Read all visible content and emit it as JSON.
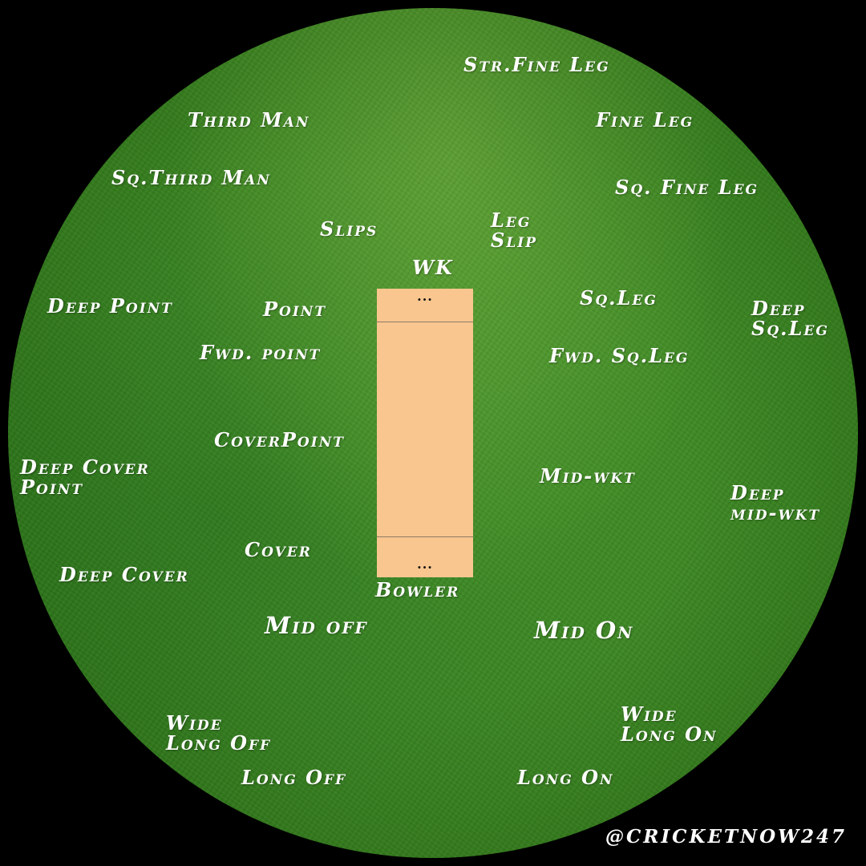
{
  "positions": {
    "str_fine_leg": "Str.Fine Leg",
    "third_man": "Third Man",
    "fine_leg": "Fine Leg",
    "sq_third_man": "Sq.Third Man",
    "sq_fine_leg": "Sq. Fine Leg",
    "slips": "Slips",
    "leg_slip_line1": "Leg",
    "leg_slip_line2": "Slip",
    "wk": "WK",
    "deep_point": "Deep Point",
    "point": "Point",
    "sq_leg": "Sq.Leg",
    "deep_sq_leg_line1": "Deep",
    "deep_sq_leg_line2": "Sq.Leg",
    "fwd_point": "Fwd. point",
    "fwd_sq_leg": "Fwd. Sq.Leg",
    "cover_point": "CoverPoint",
    "deep_cover_point_line1": "Deep Cover",
    "deep_cover_point_line2": "Point",
    "mid_wkt": "Mid-wkt",
    "deep_mid_wkt_line1": "Deep",
    "deep_mid_wkt_line2": "mid-wkt",
    "cover": "Cover",
    "deep_cover": "Deep Cover",
    "bowler": "Bowler",
    "mid_off": "Mid off",
    "mid_on": "Mid On",
    "wide_long_off_line1": "Wide",
    "wide_long_off_line2": "Long Off",
    "wide_long_on_line1": "Wide",
    "wide_long_on_line2": "Long On",
    "long_off": "Long Off",
    "long_on": "Long On"
  },
  "pitch": {
    "top_marker": "...",
    "bottom_marker": "..."
  },
  "credit": "@CRICKETNOW247",
  "colors": {
    "background": "#000000",
    "field": "#3f8a25",
    "pitch": "#f9c68f",
    "label": "#ffffff"
  }
}
